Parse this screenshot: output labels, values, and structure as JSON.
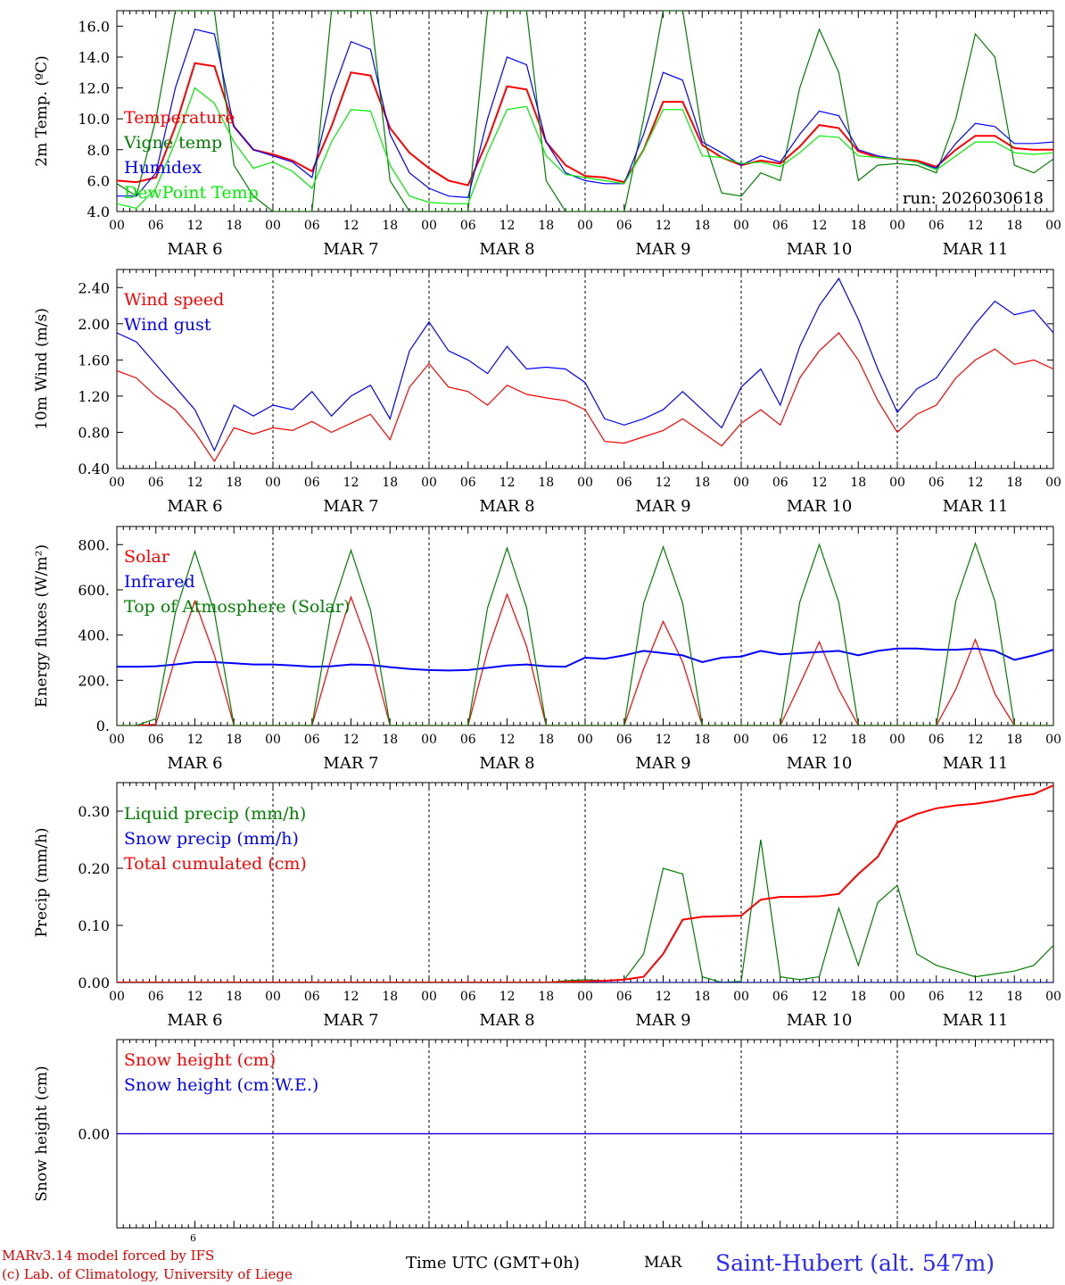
{
  "chart_data": [
    {
      "type": "line",
      "ylabel": "2m Temp. (ºC)",
      "ylim": [
        4,
        17
      ],
      "yticks": [
        "4.0",
        "6.0",
        "8.0",
        "10.0",
        "12.0",
        "14.0",
        "16.0"
      ],
      "annotation": "run: 2026030618",
      "legend_placement": "top-left",
      "x": [
        0,
        3,
        6,
        9,
        12,
        15,
        18,
        21,
        24,
        27,
        30,
        33,
        36,
        39,
        42,
        45,
        48,
        51,
        54,
        57,
        60,
        63,
        66,
        69,
        72,
        75,
        78,
        81,
        84,
        87,
        90,
        93,
        96,
        99,
        102,
        105,
        108,
        111,
        114,
        117,
        120,
        123,
        126,
        129,
        132,
        135,
        138,
        141,
        144
      ],
      "series": [
        {
          "name": "Temperature",
          "color": "#ff0000",
          "values": [
            6.0,
            5.9,
            6.2,
            9.5,
            13.6,
            13.4,
            9.5,
            8.0,
            7.7,
            7.3,
            6.6,
            9.5,
            13.0,
            12.8,
            9.4,
            7.8,
            6.8,
            6.0,
            5.7,
            8.6,
            12.1,
            11.9,
            8.5,
            7.0,
            6.3,
            6.2,
            5.9,
            8.0,
            11.1,
            11.1,
            8.3,
            7.5,
            7.0,
            7.3,
            7.1,
            8.2,
            9.6,
            9.4,
            7.9,
            7.5,
            7.4,
            7.3,
            6.9,
            8.0,
            8.9,
            8.9,
            8.1,
            8.0,
            8.0
          ]
        },
        {
          "name": "Vigne temp",
          "color": "#008000",
          "values": [
            5.8,
            5.0,
            10.0,
            17.5,
            17.5,
            17.5,
            7.0,
            5.0,
            4.0,
            4.0,
            4.0,
            17.5,
            17.5,
            17.5,
            6.0,
            4.0,
            4.0,
            4.0,
            4.0,
            17.5,
            17.5,
            17.5,
            6.0,
            4.0,
            4.0,
            4.0,
            4.0,
            10.0,
            17.5,
            17.5,
            9.0,
            5.2,
            5.0,
            6.5,
            6.0,
            12.0,
            15.8,
            13.0,
            6.0,
            7.0,
            7.1,
            7.0,
            6.5,
            10.0,
            15.5,
            14.0,
            7.0,
            6.5,
            7.4
          ]
        },
        {
          "name": "Humidex",
          "color": "#0000ff",
          "values": [
            5.0,
            5.0,
            6.5,
            12.0,
            15.8,
            15.5,
            9.5,
            8.0,
            7.6,
            7.2,
            6.2,
            11.5,
            15.0,
            14.5,
            9.0,
            6.5,
            5.5,
            5.0,
            4.9,
            10.0,
            14.0,
            13.5,
            8.5,
            6.5,
            6.0,
            5.8,
            5.8,
            9.0,
            13.0,
            12.5,
            8.5,
            7.8,
            7.0,
            7.6,
            7.2,
            9.0,
            10.5,
            10.2,
            8.0,
            7.6,
            7.4,
            7.2,
            6.8,
            8.4,
            9.7,
            9.5,
            8.4,
            8.4,
            8.5
          ]
        },
        {
          "name": "DewPoint Temp",
          "color": "#00ee00",
          "values": [
            4.5,
            4.2,
            5.5,
            8.5,
            12.0,
            11.0,
            8.5,
            6.8,
            7.2,
            6.6,
            5.5,
            8.5,
            10.6,
            10.5,
            7.0,
            5.0,
            4.6,
            4.5,
            4.5,
            7.8,
            10.6,
            10.8,
            7.6,
            6.4,
            6.2,
            6.0,
            5.8,
            8.0,
            10.6,
            10.6,
            7.6,
            7.5,
            7.1,
            7.2,
            6.9,
            7.8,
            8.9,
            8.8,
            7.6,
            7.5,
            7.4,
            7.2,
            6.7,
            7.6,
            8.5,
            8.5,
            7.8,
            7.7,
            7.8
          ]
        }
      ]
    },
    {
      "type": "line",
      "ylabel": "10m Wind (m/s)",
      "ylim": [
        0.4,
        2.6
      ],
      "yticks": [
        "0.40",
        "0.80",
        "1.20",
        "1.60",
        "2.00",
        "2.40"
      ],
      "legend_placement": "top-left",
      "x": [
        0,
        3,
        6,
        9,
        12,
        15,
        18,
        21,
        24,
        27,
        30,
        33,
        36,
        39,
        42,
        45,
        48,
        51,
        54,
        57,
        60,
        63,
        66,
        69,
        72,
        75,
        78,
        81,
        84,
        87,
        90,
        93,
        96,
        99,
        102,
        105,
        108,
        111,
        114,
        117,
        120,
        123,
        126,
        129,
        132,
        135,
        138,
        141,
        144
      ],
      "series": [
        {
          "name": "Wind speed",
          "color": "#ff0000",
          "values": [
            1.48,
            1.4,
            1.2,
            1.05,
            0.8,
            0.48,
            0.85,
            0.78,
            0.85,
            0.82,
            0.92,
            0.8,
            0.9,
            1.0,
            0.72,
            1.3,
            1.56,
            1.3,
            1.25,
            1.1,
            1.32,
            1.22,
            1.18,
            1.15,
            1.05,
            0.7,
            0.68,
            0.75,
            0.82,
            0.95,
            0.8,
            0.65,
            0.9,
            1.05,
            0.88,
            1.4,
            1.7,
            1.9,
            1.6,
            1.15,
            0.8,
            1.0,
            1.1,
            1.4,
            1.6,
            1.72,
            1.55,
            1.6,
            1.5
          ]
        },
        {
          "name": "Wind gust",
          "color": "#0000ff",
          "values": [
            1.9,
            1.8,
            1.55,
            1.3,
            1.05,
            0.6,
            1.1,
            0.98,
            1.1,
            1.05,
            1.25,
            0.98,
            1.2,
            1.32,
            0.95,
            1.7,
            2.02,
            1.7,
            1.6,
            1.45,
            1.75,
            1.5,
            1.52,
            1.5,
            1.35,
            0.95,
            0.88,
            0.95,
            1.05,
            1.25,
            1.05,
            0.85,
            1.3,
            1.5,
            1.1,
            1.75,
            2.2,
            2.5,
            2.05,
            1.5,
            1.02,
            1.28,
            1.4,
            1.7,
            2.0,
            2.25,
            2.1,
            2.15,
            1.9
          ]
        }
      ]
    },
    {
      "type": "line",
      "ylabel": "Energy fluxes (W/m²)",
      "ylim": [
        0,
        880
      ],
      "yticks": [
        "0.",
        "200.",
        "400.",
        "600.",
        "800."
      ],
      "legend_placement": "top-left",
      "x": [
        0,
        3,
        6,
        9,
        12,
        15,
        18,
        21,
        24,
        27,
        30,
        33,
        36,
        39,
        42,
        45,
        48,
        51,
        54,
        57,
        60,
        63,
        66,
        69,
        72,
        75,
        78,
        81,
        84,
        87,
        90,
        93,
        96,
        99,
        102,
        105,
        108,
        111,
        114,
        117,
        120,
        123,
        126,
        129,
        132,
        135,
        138,
        141,
        144
      ],
      "series": [
        {
          "name": "Solar",
          "color": "#ff0000",
          "values": [
            0,
            0,
            5,
            300,
            550,
            310,
            0,
            0,
            0,
            0,
            0,
            300,
            568,
            330,
            0,
            0,
            0,
            0,
            0,
            330,
            580,
            350,
            0,
            0,
            0,
            0,
            0,
            250,
            460,
            280,
            0,
            0,
            0,
            0,
            0,
            180,
            370,
            160,
            0,
            0,
            0,
            0,
            0,
            160,
            380,
            140,
            0,
            0,
            0
          ]
        },
        {
          "name": "Infrared",
          "color": "#0000ff",
          "values": [
            260,
            260,
            262,
            270,
            280,
            280,
            275,
            270,
            270,
            265,
            260,
            262,
            270,
            268,
            258,
            250,
            245,
            243,
            245,
            255,
            265,
            270,
            262,
            260,
            300,
            295,
            310,
            330,
            320,
            310,
            280,
            300,
            305,
            330,
            315,
            320,
            325,
            330,
            310,
            330,
            340,
            340,
            335,
            335,
            340,
            330,
            290,
            310,
            335
          ]
        },
        {
          "name": "Top of Atmosphere (Solar)",
          "color": "#008000",
          "values": [
            0,
            0,
            30,
            500,
            770,
            500,
            0,
            0,
            0,
            0,
            0,
            510,
            775,
            510,
            0,
            0,
            0,
            0,
            0,
            520,
            785,
            520,
            0,
            0,
            0,
            0,
            0,
            540,
            790,
            540,
            0,
            0,
            0,
            0,
            0,
            545,
            800,
            545,
            0,
            0,
            0,
            0,
            0,
            550,
            805,
            550,
            0,
            0,
            0
          ]
        }
      ]
    },
    {
      "type": "line",
      "ylabel": "Precip (mm/h)",
      "ylim": [
        0,
        0.35
      ],
      "yticks": [
        "0.00",
        "0.10",
        "0.20",
        "0.30"
      ],
      "legend_placement": "top-left",
      "x": [
        0,
        3,
        6,
        9,
        12,
        15,
        18,
        21,
        24,
        27,
        30,
        33,
        36,
        39,
        42,
        45,
        48,
        51,
        54,
        57,
        60,
        63,
        66,
        69,
        72,
        75,
        78,
        81,
        84,
        87,
        90,
        93,
        96,
        99,
        102,
        105,
        108,
        111,
        114,
        117,
        120,
        123,
        126,
        129,
        132,
        135,
        138,
        141,
        144
      ],
      "series": [
        {
          "name": "Liquid precip (mm/h)",
          "color": "#008000",
          "values": [
            0,
            0,
            0,
            0,
            0,
            0,
            0,
            0,
            0,
            0,
            0,
            0,
            0,
            0,
            0,
            0,
            0,
            0,
            0,
            0,
            0,
            0,
            0,
            0.003,
            0.005,
            0.003,
            0.005,
            0.05,
            0.2,
            0.19,
            0.01,
            0,
            0.002,
            0.25,
            0.01,
            0.005,
            0.01,
            0.13,
            0.03,
            0.14,
            0.17,
            0.05,
            0.03,
            0.02,
            0.01,
            0.015,
            0.02,
            0.03,
            0.065
          ]
        },
        {
          "name": "Snow precip (mm/h)",
          "color": "#0000ff",
          "values": [
            0,
            0,
            0,
            0,
            0,
            0,
            0,
            0,
            0,
            0,
            0,
            0,
            0,
            0,
            0,
            0,
            0,
            0,
            0,
            0,
            0,
            0,
            0,
            0,
            0,
            0,
            0,
            0,
            0,
            0,
            0,
            0,
            0,
            0,
            0,
            0,
            0,
            0,
            0,
            0,
            0,
            0,
            0,
            0,
            0,
            0,
            0,
            0,
            0
          ]
        },
        {
          "name": "Total cumulated (cm)",
          "color": "#ff0000",
          "values": [
            0,
            0,
            0,
            0,
            0,
            0,
            0,
            0,
            0,
            0,
            0,
            0,
            0,
            0,
            0,
            0,
            0,
            0,
            0,
            0,
            0,
            0,
            0,
            0.001,
            0.002,
            0.003,
            0.005,
            0.01,
            0.05,
            0.11,
            0.115,
            0.116,
            0.117,
            0.145,
            0.15,
            0.15,
            0.151,
            0.155,
            0.19,
            0.22,
            0.28,
            0.295,
            0.305,
            0.31,
            0.313,
            0.318,
            0.325,
            0.33,
            0.345
          ]
        }
      ]
    },
    {
      "type": "line",
      "ylabel": "Snow height (cm)",
      "ylim": [
        -1,
        1
      ],
      "yticks": [
        "0.00"
      ],
      "legend_placement": "top-left",
      "x": [
        0,
        144
      ],
      "series": [
        {
          "name": "Snow height (cm)",
          "color": "#ff0000",
          "values": [
            0,
            0
          ]
        },
        {
          "name": "Snow height (cm W.E.)",
          "color": "#0000ff",
          "values": [
            0,
            0
          ]
        }
      ]
    }
  ],
  "xticks": [
    "00",
    "06",
    "12",
    "18",
    "00",
    "06",
    "12",
    "18",
    "00",
    "06",
    "12",
    "18",
    "00",
    "06",
    "12",
    "18",
    "00",
    "06",
    "12",
    "18",
    "00",
    "06",
    "12",
    "18",
    "00"
  ],
  "days": [
    "MAR  6",
    "MAR  7",
    "MAR  8",
    "MAR  9",
    "MAR 10",
    "MAR 11"
  ],
  "footer": {
    "credit_line1": "MARv3.14 model forced by IFS",
    "credit_line2": "(c) Lab. of Climatology, University of Liege",
    "time_label": "Time UTC (GMT+0h)",
    "month_label": "MAR",
    "day_label": "6",
    "station": "Saint-Hubert (alt. 547m)"
  }
}
